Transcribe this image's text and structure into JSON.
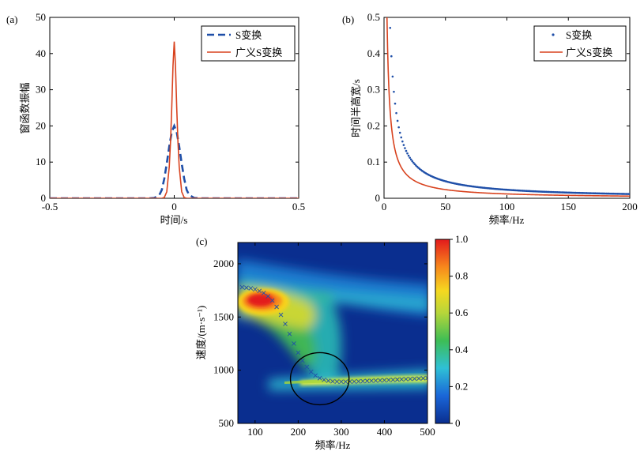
{
  "chart_data": [
    {
      "id": "a",
      "panel_label": "(a)",
      "type": "line",
      "xlabel": "时间/s",
      "ylabel": "窗函数振幅",
      "xlim": [
        -0.5,
        0.5
      ],
      "ylim": [
        0,
        50
      ],
      "xticks": [
        -0.5,
        0,
        0.5
      ],
      "yticks": [
        0,
        10,
        20,
        30,
        40,
        50
      ],
      "legend_position": "top-right",
      "series": [
        {
          "name": "S变换",
          "style": "dashed",
          "color": "#1f4fa8",
          "x": [
            -0.5,
            -0.1,
            -0.08,
            -0.06,
            -0.05,
            -0.04,
            -0.03,
            -0.02,
            -0.01,
            0,
            0.01,
            0.02,
            0.03,
            0.04,
            0.05,
            0.06,
            0.08,
            0.1,
            0.5
          ],
          "y": [
            0,
            0,
            0.1,
            0.9,
            2.3,
            5.4,
            9.6,
            14.3,
            18.3,
            20,
            18.3,
            14.3,
            9.6,
            5.4,
            2.3,
            0.9,
            0.1,
            0,
            0
          ]
        },
        {
          "name": "广义S变换",
          "style": "solid",
          "color": "#d8421e",
          "x": [
            -0.5,
            -0.05,
            -0.04,
            -0.03,
            -0.02,
            -0.015,
            -0.01,
            -0.005,
            0,
            0.005,
            0.01,
            0.015,
            0.02,
            0.03,
            0.04,
            0.05,
            0.5
          ],
          "y": [
            0,
            0,
            0.2,
            1.8,
            8.7,
            15.5,
            25,
            36.6,
            43.3,
            36.6,
            25,
            15.5,
            8.7,
            1.8,
            0.2,
            0,
            0
          ]
        }
      ]
    },
    {
      "id": "b",
      "panel_label": "(b)",
      "type": "line",
      "xlabel": "频率/Hz",
      "ylabel": "时间半高宽/s",
      "xlim": [
        0,
        200
      ],
      "ylim": [
        0,
        0.5
      ],
      "xticks": [
        0,
        50,
        100,
        150,
        200
      ],
      "yticks": [
        0,
        0.1,
        0.2,
        0.3,
        0.4,
        0.5
      ],
      "legend_position": "top-right",
      "series": [
        {
          "name": "S变换",
          "style": "dotted-markers",
          "color": "#1f4fa8",
          "formula": "2.355/f",
          "x_start": 5,
          "x_end": 200,
          "x_step": 1
        },
        {
          "name": "广义S变换",
          "style": "solid",
          "color": "#d8421e",
          "formula": "1.2/f",
          "x_start": 2.4,
          "x_end": 200,
          "x_step": 0.5
        }
      ]
    },
    {
      "id": "c",
      "panel_label": "(c)",
      "type": "heatmap",
      "xlabel": "频率/Hz",
      "ylabel": "速度/(m·s⁻¹)",
      "xlim": [
        60,
        500
      ],
      "ylim": [
        500,
        2200
      ],
      "xticks": [
        100,
        200,
        300,
        400,
        500
      ],
      "yticks": [
        500,
        1000,
        1500,
        2000
      ],
      "colorbar": {
        "min": 0,
        "max": 1,
        "ticks": [
          "0",
          "0.2",
          "0.4",
          "0.6",
          "0.8",
          "1.0"
        ]
      },
      "colormap": [
        [
          0,
          "#0a2e8f"
        ],
        [
          0.15,
          "#1a66d8"
        ],
        [
          0.3,
          "#2fc0d6"
        ],
        [
          0.45,
          "#3dbd55"
        ],
        [
          0.6,
          "#b6d63a"
        ],
        [
          0.72,
          "#f5d820"
        ],
        [
          0.85,
          "#f7881c"
        ],
        [
          1,
          "#e31a1c"
        ]
      ],
      "max_energy_location": {
        "frequency": 110,
        "velocity": 1650
      },
      "dispersion_picks": {
        "marker": "x",
        "color": "#1f4fa8",
        "frequency": [
          70,
          80,
          90,
          100,
          110,
          120,
          130,
          140,
          150,
          160,
          170,
          180,
          190,
          200,
          210,
          220,
          230,
          240,
          250,
          260,
          270,
          280,
          290,
          300,
          310,
          320,
          330,
          340,
          350,
          360,
          370,
          380,
          390,
          400,
          410,
          420,
          430,
          440,
          450,
          460,
          470,
          480,
          490,
          500
        ],
        "velocity": [
          1780,
          1775,
          1770,
          1760,
          1745,
          1725,
          1695,
          1655,
          1595,
          1520,
          1435,
          1340,
          1250,
          1165,
          1090,
          1030,
          985,
          950,
          925,
          910,
          900,
          895,
          893,
          892,
          892,
          893,
          894,
          895,
          897,
          899,
          900,
          902,
          904,
          906,
          908,
          910,
          912,
          914,
          916,
          918,
          920,
          922,
          924,
          926
        ]
      },
      "annotation": {
        "shape": "ellipse",
        "center_frequency": 250,
        "center_velocity": 920,
        "radius_frequency": 68,
        "radius_velocity": 245
      }
    }
  ]
}
